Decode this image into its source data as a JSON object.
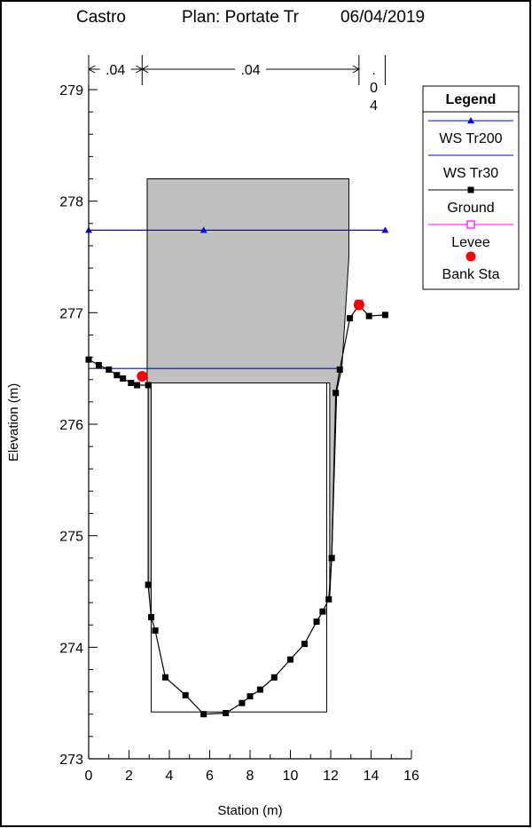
{
  "header": {
    "project": "Castro",
    "plan": "Plan: Portate Tr",
    "date": "06/04/2019"
  },
  "manning": {
    "left": ".04",
    "channel": ".04",
    "right_top": ".",
    "right_mid": "0",
    "right_bot": "4"
  },
  "legend": {
    "title": "Legend",
    "items": [
      {
        "label": "WS Tr200",
        "color": "#0000ff",
        "marker": "triangle"
      },
      {
        "label": "WS Tr30",
        "color": "#0000ff",
        "marker": "none"
      },
      {
        "label": "Ground",
        "color": "#000000",
        "marker": "square"
      },
      {
        "label": "Levee",
        "color": "#ff00ff",
        "marker": "open-square"
      },
      {
        "label": "Bank Sta",
        "color": "#ff0000",
        "marker": "circle"
      }
    ]
  },
  "chart_data": {
    "type": "line",
    "xlabel": "Station (m)",
    "ylabel": "Elevation (m)",
    "xlim": [
      0,
      16
    ],
    "ylim": [
      273,
      279.3
    ],
    "xticks": [
      "0",
      "2",
      "4",
      "6",
      "8",
      "10",
      "12",
      "14",
      "16"
    ],
    "yticks": [
      "273",
      "274",
      "275",
      "276",
      "277",
      "278",
      "279"
    ],
    "grid": false,
    "legend_position": "top-right",
    "manning_break_stations": [
      0,
      2.65,
      13.4,
      14.7
    ],
    "bridge_deck": {
      "x_left": 2.9,
      "x_right": 12.9,
      "top": 278.2,
      "low_chord": 276.37,
      "left_abutment_x": 3.0,
      "right_profile": [
        [
          12.9,
          278.2
        ],
        [
          12.9,
          277.5
        ],
        [
          12.55,
          276.5
        ],
        [
          12.3,
          276.3
        ],
        [
          12.05,
          274.8
        ],
        [
          11.95,
          274.45
        ],
        [
          11.95,
          276.37
        ]
      ],
      "color": "#c0c0c0"
    },
    "culvert_box": {
      "x_left": 3.1,
      "x_right": 11.8,
      "y_bottom": 273.42,
      "y_top": 276.37
    },
    "series": [
      {
        "name": "WS Tr200",
        "color": "#0000ff",
        "marker": "triangle",
        "points": [
          [
            0,
            277.74
          ],
          [
            5.7,
            277.74
          ],
          [
            14.7,
            277.74
          ]
        ]
      },
      {
        "name": "WS Tr30",
        "color": "#0000ff",
        "marker": "none",
        "points": [
          [
            0,
            276.5
          ],
          [
            12.5,
            276.5
          ]
        ]
      },
      {
        "name": "Ground",
        "color": "#000000",
        "marker": "square",
        "points": [
          [
            0,
            276.58
          ],
          [
            0.5,
            276.53
          ],
          [
            1.0,
            276.49
          ],
          [
            1.4,
            276.44
          ],
          [
            1.7,
            276.41
          ],
          [
            2.1,
            276.37
          ],
          [
            2.4,
            276.35
          ],
          [
            2.95,
            276.35
          ],
          [
            2.95,
            274.56
          ],
          [
            3.1,
            274.27
          ],
          [
            3.3,
            274.15
          ],
          [
            3.8,
            273.73
          ],
          [
            4.8,
            273.57
          ],
          [
            5.7,
            273.4
          ],
          [
            6.8,
            273.41
          ],
          [
            7.6,
            273.5
          ],
          [
            8.0,
            273.56
          ],
          [
            8.5,
            273.62
          ],
          [
            9.2,
            273.73
          ],
          [
            10.0,
            273.89
          ],
          [
            10.7,
            274.03
          ],
          [
            11.3,
            274.23
          ],
          [
            11.6,
            274.32
          ],
          [
            11.9,
            274.43
          ],
          [
            12.05,
            274.8
          ],
          [
            12.25,
            276.28
          ],
          [
            12.45,
            276.49
          ],
          [
            12.95,
            276.95
          ],
          [
            13.4,
            277.07
          ],
          [
            13.9,
            276.97
          ],
          [
            14.7,
            276.98
          ]
        ]
      },
      {
        "name": "Levee",
        "color": "#ff00ff",
        "marker": "open-square",
        "points": [
          [
            13.4,
            277.08
          ]
        ]
      },
      {
        "name": "Bank Sta",
        "color": "#ff0000",
        "marker": "circle",
        "points": [
          [
            2.65,
            276.43
          ],
          [
            13.4,
            277.07
          ]
        ]
      }
    ]
  }
}
